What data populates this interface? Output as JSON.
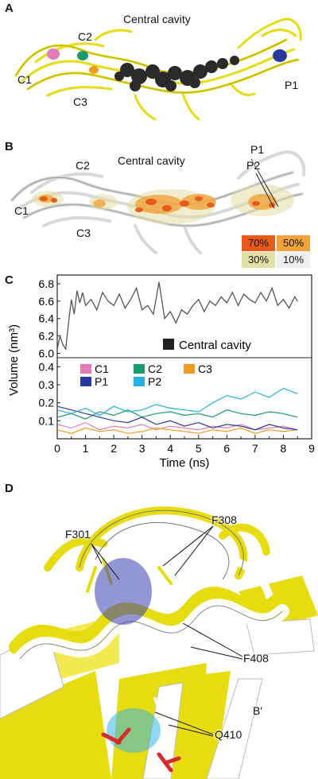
{
  "panels": {
    "a": {
      "label": "A",
      "labels": {
        "c1": "C1",
        "c2": "C2",
        "c3": "C3",
        "central": "Central cavity",
        "p1": "P1"
      }
    },
    "b": {
      "label": "B",
      "labels": {
        "c1": "C1",
        "c2": "C2",
        "c3": "C3",
        "central": "Central cavity",
        "p1": "P1",
        "p2": "P2"
      },
      "occupancy_legend": [
        {
          "text": "70%",
          "color": "#e8591a"
        },
        {
          "text": "50%",
          "color": "#f2a33a"
        },
        {
          "text": "30%",
          "color": "#e3e0a6"
        },
        {
          "text": "10%",
          "color": "#efefef"
        }
      ]
    },
    "c": {
      "label": "C"
    },
    "d": {
      "label": "D",
      "labels": {
        "f301": "F301",
        "f308": "F308",
        "f408": "F408",
        "q410": "Q410",
        "bprime": "B′"
      }
    }
  },
  "chart_data": [
    {
      "type": "line",
      "panel": "C-top",
      "ylabel": "",
      "ylim": [
        5.95,
        6.9
      ],
      "yticks": [
        "6.0",
        "6.2",
        "6.4",
        "6.6",
        "6.8"
      ],
      "xlim": [
        0,
        9
      ],
      "series": [
        {
          "name": "Central cavity",
          "color": "#555555",
          "x": [
            0,
            0.1,
            0.2,
            0.3,
            0.4,
            0.5,
            0.6,
            0.7,
            0.8,
            0.9,
            1.0,
            1.2,
            1.4,
            1.6,
            1.8,
            2.0,
            2.2,
            2.4,
            2.6,
            2.8,
            3.0,
            3.2,
            3.4,
            3.6,
            3.8,
            4.0,
            4.2,
            4.4,
            4.6,
            4.8,
            5.0,
            5.2,
            5.4,
            5.6,
            5.8,
            6.0,
            6.2,
            6.4,
            6.6,
            6.8,
            7.0,
            7.2,
            7.4,
            7.6,
            7.8,
            8.0,
            8.2,
            8.4,
            8.5
          ],
          "y": [
            6.05,
            6.2,
            6.1,
            6.05,
            6.35,
            6.62,
            6.45,
            6.72,
            6.58,
            6.7,
            6.55,
            6.62,
            6.5,
            6.7,
            6.6,
            6.55,
            6.68,
            6.52,
            6.62,
            6.75,
            6.5,
            6.55,
            6.45,
            6.82,
            6.4,
            6.48,
            6.35,
            6.5,
            6.45,
            6.55,
            6.62,
            6.48,
            6.6,
            6.55,
            6.65,
            6.58,
            6.7,
            6.55,
            6.68,
            6.62,
            6.58,
            6.7,
            6.6,
            6.75,
            6.55,
            6.62,
            6.52,
            6.65,
            6.6
          ]
        }
      ]
    },
    {
      "type": "line",
      "panel": "C-bottom",
      "xlabel": "Time (ns)",
      "ylabel": "Volume (nm³)",
      "ylim": [
        0,
        0.45
      ],
      "yticks": [
        "0.1",
        "0.2",
        "0.3",
        "0.4"
      ],
      "xlim": [
        0,
        9
      ],
      "xticks": [
        "0",
        "0.5",
        "1",
        "1.5",
        "2",
        "2.5",
        "3",
        "3.5",
        "4",
        "4.5",
        "5",
        "5.5",
        "6",
        "6.5",
        "7",
        "7.5",
        "8",
        "8.5",
        "9"
      ],
      "categories": [
        0,
        0.5,
        1.0,
        1.5,
        2.0,
        2.5,
        3.0,
        3.5,
        4.0,
        4.5,
        5.0,
        5.5,
        6.0,
        6.5,
        7.0,
        7.5,
        8.0,
        8.5
      ],
      "series": [
        {
          "name": "C1",
          "color": "#e47ab8",
          "values": [
            0.08,
            0.06,
            0.09,
            0.05,
            0.07,
            0.06,
            0.08,
            0.05,
            0.07,
            0.06,
            0.05,
            0.07,
            0.06,
            0.08,
            0.05,
            0.06,
            0.07,
            0.05
          ]
        },
        {
          "name": "C2",
          "color": "#1a9a6e",
          "values": [
            0.12,
            0.14,
            0.11,
            0.15,
            0.13,
            0.16,
            0.12,
            0.14,
            0.15,
            0.13,
            0.14,
            0.12,
            0.16,
            0.14,
            0.13,
            0.15,
            0.14,
            0.12
          ]
        },
        {
          "name": "C3",
          "color": "#f39b21",
          "values": [
            0.05,
            0.03,
            0.06,
            0.04,
            0.05,
            0.03,
            0.04,
            0.06,
            0.05,
            0.04,
            0.03,
            0.05,
            0.04,
            0.06,
            0.03,
            0.05,
            0.04,
            0.05
          ]
        },
        {
          "name": "P1",
          "color": "#2a3a9c",
          "values": [
            0.18,
            0.16,
            0.14,
            0.12,
            0.1,
            0.09,
            0.12,
            0.08,
            0.1,
            0.07,
            0.09,
            0.06,
            0.08,
            0.07,
            0.05,
            0.08,
            0.06,
            0.05
          ]
        },
        {
          "name": "P2",
          "color": "#22b3df",
          "values": [
            0.16,
            0.14,
            0.17,
            0.13,
            0.18,
            0.15,
            0.16,
            0.19,
            0.17,
            0.16,
            0.15,
            0.2,
            0.24,
            0.22,
            0.26,
            0.23,
            0.28,
            0.25
          ]
        }
      ]
    }
  ]
}
